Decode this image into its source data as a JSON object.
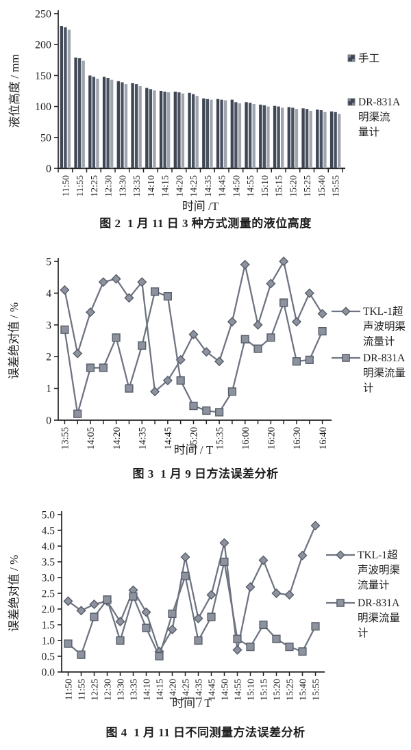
{
  "page": {
    "background": "#ffffff"
  },
  "colors": {
    "axis": "#222222",
    "text": "#1d1d1f",
    "bar_dark": "#3e4553",
    "bar_mid": "#4a5160",
    "bar_light": "#9fa5ae",
    "line": "#6e7481",
    "marker_fill": "#8d939e",
    "marker_stroke": "#565c68"
  },
  "chart_data": [
    {
      "type": "bar",
      "title": "图 2  1 月 11 日 3 种方式测量的液位高度",
      "xlabel": "时间 /T",
      "ylabel": "液位高度 / mm",
      "ylim": [
        0,
        250
      ],
      "yticks": [
        "0",
        "50",
        "100",
        "150",
        "200",
        "250"
      ],
      "grid": false,
      "legend_position": "right",
      "categories": [
        "11:50",
        "11:55",
        "12:25",
        "12:30",
        "13:30",
        "13:35",
        "14:10",
        "14:15",
        "14:20",
        "14:25",
        "14:35",
        "14:45",
        "14:50",
        "14:55",
        "15:10",
        "15:15",
        "15:20",
        "15:25",
        "15:40",
        "15:55"
      ],
      "series": [
        {
          "name": "手工",
          "color": "#3e4553",
          "values": [
            230,
            179,
            150,
            148,
            141,
            138,
            130,
            125,
            124,
            122,
            113,
            112,
            111,
            107,
            103,
            101,
            99,
            97,
            95,
            92
          ]
        },
        {
          "name": "",
          "color": "#4a5160",
          "values": [
            228,
            178,
            148,
            146,
            139,
            136,
            128,
            124,
            123,
            120,
            112,
            111,
            107,
            106,
            102,
            100,
            98,
            96,
            94,
            91
          ]
        },
        {
          "name": "DR-831A明渠流量计",
          "color": "#9fa5ae",
          "values": [
            224,
            174,
            145,
            143,
            136,
            133,
            126,
            123,
            121,
            117,
            111,
            110,
            105,
            104,
            100,
            98,
            96,
            93,
            91,
            88
          ]
        }
      ],
      "legend": [
        {
          "lines": [
            "手工"
          ],
          "marker": "square-patch"
        },
        {
          "lines": [
            "DR-831A",
            "明渠流",
            "量计"
          ],
          "marker": "square-patch"
        }
      ]
    },
    {
      "type": "line",
      "title": "图 3  1 月 9 日方法误差分析",
      "xlabel": "时间 / T",
      "ylabel": "误差绝对值 / %",
      "ylim": [
        0,
        5
      ],
      "yticks": [
        "0",
        "1",
        "2",
        "3",
        "4",
        "5"
      ],
      "grid": false,
      "legend_position": "right",
      "categories": [
        "13:55",
        "",
        "14:05",
        "",
        "14:20",
        "",
        "14:35",
        "",
        "14:45",
        "",
        "15:20",
        "",
        "15:35",
        "",
        "16:00",
        "",
        "16:20",
        "",
        "16:30",
        "",
        "16:40"
      ],
      "series": [
        {
          "name": "TKL-1超声波明渠流量计",
          "marker": "diamond",
          "values": [
            4.1,
            2.1,
            3.4,
            4.35,
            4.45,
            3.85,
            4.35,
            0.9,
            1.25,
            1.9,
            2.7,
            2.15,
            1.85,
            3.1,
            4.9,
            3.0,
            4.3,
            5.0,
            3.1,
            4.0,
            3.35
          ]
        },
        {
          "name": "DR-831A明渠流量计",
          "marker": "square",
          "values": [
            2.85,
            0.2,
            1.65,
            1.65,
            2.6,
            1.0,
            2.35,
            4.05,
            3.9,
            1.25,
            0.45,
            0.3,
            0.25,
            0.9,
            2.55,
            2.25,
            2.6,
            3.7,
            1.85,
            1.9,
            2.8
          ]
        }
      ],
      "legend": [
        {
          "lines": [
            "TKL-1超",
            "声波明渠",
            "流量计"
          ],
          "marker": "diamond-line"
        },
        {
          "lines": [
            "DR-831A",
            "明渠流量",
            "计"
          ],
          "marker": "square-line"
        }
      ]
    },
    {
      "type": "line",
      "title": "图 4  1 月 11 日不同测量方法误差分析",
      "xlabel": "时间 / T",
      "ylabel": "误差绝对值 / %",
      "ylim": [
        0,
        5
      ],
      "yticks": [
        "0.0",
        "0.5",
        "1.0",
        "1.5",
        "2.0",
        "2.5",
        "3.0",
        "3.5",
        "4.0",
        "4.5",
        "5.0"
      ],
      "grid": false,
      "legend_position": "right",
      "categories": [
        "11:50",
        "11:55",
        "12:25",
        "12:30",
        "13:30",
        "13:35",
        "14:10",
        "14:15",
        "14:20",
        "14:25",
        "14:35",
        "14:45",
        "14:50",
        "14:55",
        "15:10",
        "15:15",
        "15:20",
        "15:25",
        "15:40",
        "15:55"
      ],
      "series": [
        {
          "name": "TKL-1超声波明渠流量计",
          "marker": "diamond",
          "values": [
            2.25,
            1.95,
            2.15,
            2.25,
            1.6,
            2.6,
            1.9,
            0.65,
            1.35,
            3.65,
            1.7,
            2.45,
            4.1,
            0.7,
            2.7,
            3.55,
            2.5,
            2.45,
            3.7,
            4.65
          ]
        },
        {
          "name": "DR-831A明渠流量计",
          "marker": "square",
          "values": [
            0.9,
            0.55,
            1.75,
            2.3,
            1.0,
            2.4,
            1.4,
            0.5,
            1.85,
            3.05,
            1.0,
            1.75,
            3.5,
            1.05,
            0.8,
            1.5,
            1.05,
            0.8,
            0.65,
            1.45
          ]
        }
      ],
      "legend": [
        {
          "lines": [
            "TKL-1超",
            "声波明渠",
            "流量计"
          ],
          "marker": "diamond-line"
        },
        {
          "lines": [
            "DR-831A",
            "明渠流量",
            "计"
          ],
          "marker": "square-line"
        }
      ]
    }
  ]
}
